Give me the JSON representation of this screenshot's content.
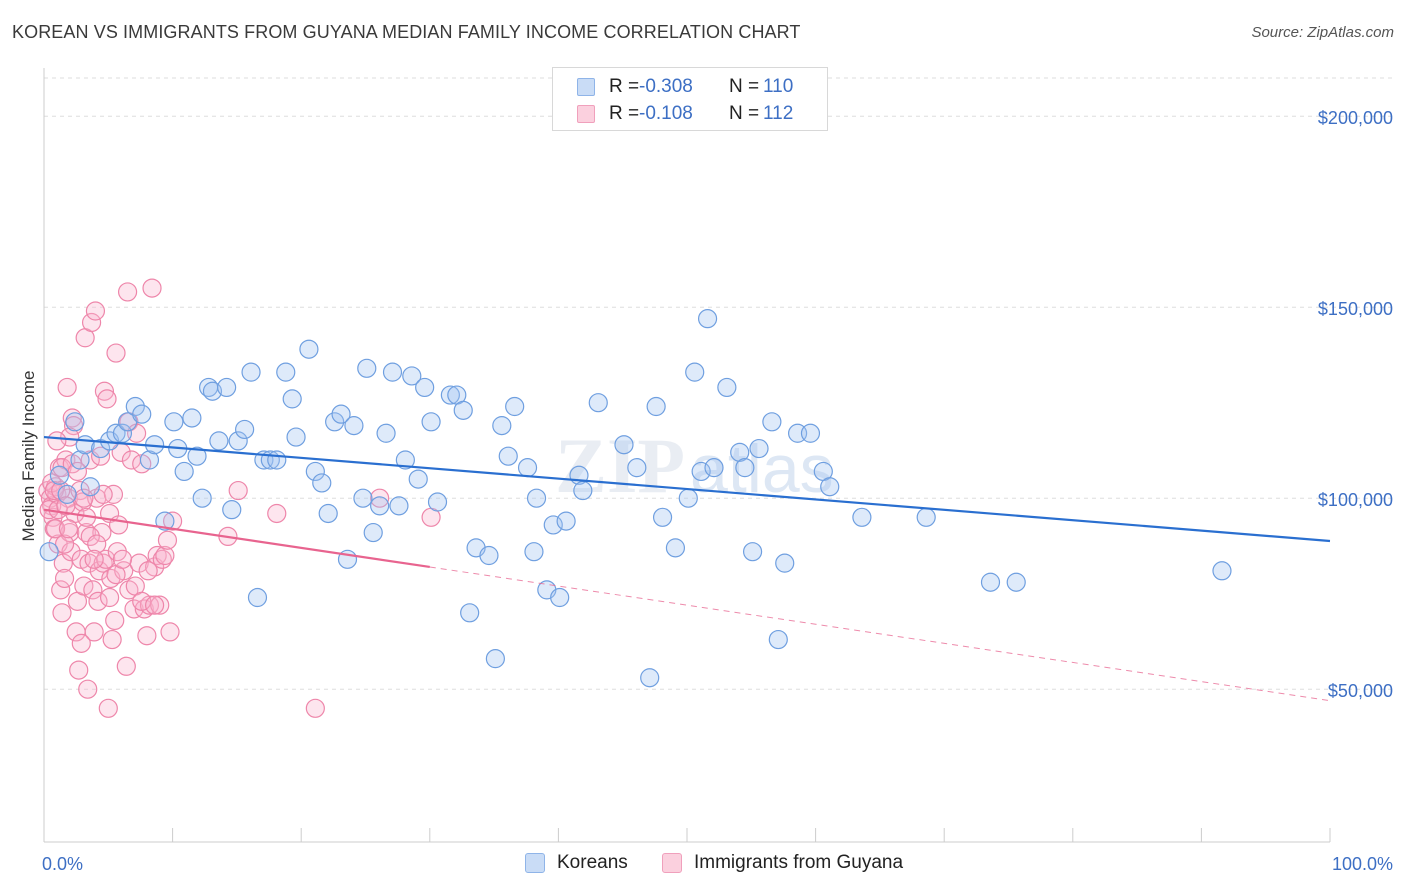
{
  "title": "KOREAN VS IMMIGRANTS FROM GUYANA MEDIAN FAMILY INCOME CORRELATION CHART",
  "source": "Source: ZipAtlas.com",
  "watermark": {
    "zip": "ZIP",
    "atlas": "atlas"
  },
  "legend_stats": [
    {
      "r_label": "R =",
      "r_value": "-0.308",
      "n_label": "N =",
      "n_value": "110",
      "color": "#8fb4e8",
      "fill": "#c9dcf6"
    },
    {
      "r_label": "R =",
      "r_value": "-0.108",
      "n_label": "N =",
      "n_value": "112",
      "color": "#f0a0bc",
      "fill": "#fbd0de"
    }
  ],
  "bottom_legend": [
    {
      "label": "Koreans",
      "color": "#8fb4e8",
      "fill": "#c9dcf6"
    },
    {
      "label": "Immigrants from Guyana",
      "color": "#f0a0bc",
      "fill": "#fbd0de"
    }
  ],
  "chart_data": {
    "type": "scatter",
    "xlabel": "",
    "ylabel": "Median Family Income",
    "xlim": [
      0,
      100
    ],
    "ylim": [
      10000,
      210000
    ],
    "y_ticks": [
      {
        "value": 50000,
        "label": "$50,000"
      },
      {
        "value": 100000,
        "label": "$100,000"
      },
      {
        "value": 150000,
        "label": "$150,000"
      },
      {
        "value": 200000,
        "label": "$200,000"
      }
    ],
    "x_ticks": [
      {
        "value": 0,
        "label": "0.0%"
      },
      {
        "value": 100,
        "label": "100.0%"
      }
    ],
    "grid": true,
    "colors": {
      "koreans_stroke": "#6f9fe0",
      "koreans_fill": "rgba(160,195,240,0.35)",
      "guyana_stroke": "#ee86aa",
      "guyana_fill": "rgba(248,180,205,0.35)",
      "koreans_line": "#2a6fd0",
      "guyana_line": "#e8648f"
    },
    "series": [
      {
        "name": "Koreans",
        "trend": {
          "x": [
            0,
            100
          ],
          "y": [
            116000,
            88800
          ]
        },
        "points": [
          [
            0.4,
            86000
          ],
          [
            1.2,
            106000
          ],
          [
            1.8,
            101000
          ],
          [
            2.4,
            120000
          ],
          [
            2.8,
            110000
          ],
          [
            3.2,
            114000
          ],
          [
            3.6,
            103000
          ],
          [
            4.4,
            113000
          ],
          [
            5.1,
            115000
          ],
          [
            5.6,
            117000
          ],
          [
            6.1,
            117000
          ],
          [
            6.5,
            120000
          ],
          [
            7.1,
            124000
          ],
          [
            7.6,
            122000
          ],
          [
            8.2,
            110000
          ],
          [
            8.6,
            114000
          ],
          [
            9.4,
            94000
          ],
          [
            10.1,
            120000
          ],
          [
            10.4,
            113000
          ],
          [
            10.9,
            107000
          ],
          [
            11.5,
            121000
          ],
          [
            11.9,
            111000
          ],
          [
            12.3,
            100000
          ],
          [
            12.8,
            129000
          ],
          [
            13.1,
            128000
          ],
          [
            13.6,
            115000
          ],
          [
            14.2,
            129000
          ],
          [
            14.6,
            97000
          ],
          [
            15.1,
            115000
          ],
          [
            15.6,
            118000
          ],
          [
            16.1,
            133000
          ],
          [
            16.6,
            74000
          ],
          [
            17.1,
            110000
          ],
          [
            17.6,
            110000
          ],
          [
            18.1,
            110000
          ],
          [
            18.8,
            133000
          ],
          [
            19.3,
            126000
          ],
          [
            19.6,
            116000
          ],
          [
            20.6,
            139000
          ],
          [
            21.1,
            107000
          ],
          [
            21.6,
            104000
          ],
          [
            22.1,
            96000
          ],
          [
            22.6,
            120000
          ],
          [
            23.1,
            122000
          ],
          [
            23.6,
            84000
          ],
          [
            24.1,
            119000
          ],
          [
            24.8,
            100000
          ],
          [
            25.1,
            134000
          ],
          [
            25.6,
            91000
          ],
          [
            26.1,
            98000
          ],
          [
            26.6,
            117000
          ],
          [
            27.1,
            133000
          ],
          [
            27.6,
            98000
          ],
          [
            28.1,
            110000
          ],
          [
            28.6,
            132000
          ],
          [
            29.1,
            105000
          ],
          [
            29.6,
            129000
          ],
          [
            30.1,
            120000
          ],
          [
            30.6,
            99000
          ],
          [
            31.6,
            127000
          ],
          [
            32.1,
            127000
          ],
          [
            32.6,
            123000
          ],
          [
            33.1,
            70000
          ],
          [
            33.6,
            87000
          ],
          [
            34.6,
            85000
          ],
          [
            35.1,
            58000
          ],
          [
            35.6,
            119000
          ],
          [
            36.1,
            111000
          ],
          [
            36.6,
            124000
          ],
          [
            37.6,
            108000
          ],
          [
            38.1,
            86000
          ],
          [
            38.3,
            100000
          ],
          [
            39.1,
            76000
          ],
          [
            39.6,
            93000
          ],
          [
            40.1,
            74000
          ],
          [
            40.6,
            94000
          ],
          [
            41.6,
            106000
          ],
          [
            41.9,
            102000
          ],
          [
            43.1,
            125000
          ],
          [
            45.1,
            114000
          ],
          [
            46.1,
            108000
          ],
          [
            47.1,
            53000
          ],
          [
            47.6,
            124000
          ],
          [
            48.1,
            95000
          ],
          [
            49.1,
            87000
          ],
          [
            50.1,
            100000
          ],
          [
            50.6,
            133000
          ],
          [
            51.1,
            107000
          ],
          [
            51.6,
            147000
          ],
          [
            52.1,
            108000
          ],
          [
            53.1,
            129000
          ],
          [
            54.1,
            112000
          ],
          [
            54.5,
            108000
          ],
          [
            55.1,
            86000
          ],
          [
            55.6,
            113000
          ],
          [
            56.6,
            120000
          ],
          [
            57.1,
            63000
          ],
          [
            57.6,
            83000
          ],
          [
            58.6,
            117000
          ],
          [
            59.6,
            117000
          ],
          [
            60.6,
            107000
          ],
          [
            61.1,
            103000
          ],
          [
            63.6,
            95000
          ],
          [
            68.6,
            95000
          ],
          [
            73.6,
            78000
          ],
          [
            75.6,
            78000
          ],
          [
            91.6,
            81000
          ]
        ]
      },
      {
        "name": "Immigrants from Guyana",
        "trend": {
          "x": [
            0,
            30
          ],
          "y": [
            97000,
            82000
          ],
          "dashed_to": {
            "x": 100,
            "y": 47000
          }
        },
        "points": [
          [
            0.3,
            102000
          ],
          [
            0.5,
            100000
          ],
          [
            0.6,
            98000
          ],
          [
            0.7,
            95000
          ],
          [
            0.8,
            92000
          ],
          [
            0.9,
            103000
          ],
          [
            1.0,
            101000
          ],
          [
            1.1,
            88000
          ],
          [
            1.2,
            108000
          ],
          [
            1.3,
            76000
          ],
          [
            1.4,
            70000
          ],
          [
            1.5,
            83000
          ],
          [
            1.6,
            79000
          ],
          [
            1.7,
            110000
          ],
          [
            1.8,
            129000
          ],
          [
            1.9,
            100000
          ],
          [
            2.0,
            91000
          ],
          [
            2.1,
            86000
          ],
          [
            2.2,
            121000
          ],
          [
            2.3,
            119000
          ],
          [
            2.4,
            96000
          ],
          [
            2.5,
            65000
          ],
          [
            2.6,
            73000
          ],
          [
            2.7,
            55000
          ],
          [
            2.8,
            102000
          ],
          [
            2.9,
            84000
          ],
          [
            3.0,
            99000
          ],
          [
            3.1,
            77000
          ],
          [
            3.2,
            142000
          ],
          [
            3.3,
            91000
          ],
          [
            3.4,
            50000
          ],
          [
            3.5,
            83000
          ],
          [
            3.6,
            110000
          ],
          [
            3.7,
            146000
          ],
          [
            3.8,
            76000
          ],
          [
            3.9,
            65000
          ],
          [
            4.0,
            149000
          ],
          [
            4.1,
            100000
          ],
          [
            4.2,
            73000
          ],
          [
            4.3,
            81000
          ],
          [
            4.4,
            111000
          ],
          [
            4.5,
            91000
          ],
          [
            4.6,
            83000
          ],
          [
            4.7,
            128000
          ],
          [
            4.8,
            84000
          ],
          [
            4.9,
            126000
          ],
          [
            5.0,
            45000
          ],
          [
            5.1,
            96000
          ],
          [
            5.2,
            79000
          ],
          [
            5.3,
            63000
          ],
          [
            5.4,
            101000
          ],
          [
            5.5,
            68000
          ],
          [
            5.6,
            138000
          ],
          [
            5.7,
            86000
          ],
          [
            5.8,
            93000
          ],
          [
            6.0,
            112000
          ],
          [
            6.2,
            81000
          ],
          [
            6.4,
            56000
          ],
          [
            6.6,
            120000
          ],
          [
            6.8,
            110000
          ],
          [
            7.0,
            71000
          ],
          [
            7.2,
            117000
          ],
          [
            7.4,
            83000
          ],
          [
            7.6,
            109000
          ],
          [
            7.8,
            71000
          ],
          [
            8.0,
            64000
          ],
          [
            8.2,
            72000
          ],
          [
            8.4,
            155000
          ],
          [
            8.6,
            82000
          ],
          [
            8.8,
            85000
          ],
          [
            9.0,
            72000
          ],
          [
            9.2,
            84000
          ],
          [
            9.4,
            85000
          ],
          [
            9.6,
            89000
          ],
          [
            9.8,
            65000
          ],
          [
            10.0,
            94000
          ],
          [
            6.5,
            154000
          ],
          [
            14.3,
            90000
          ],
          [
            15.1,
            102000
          ],
          [
            18.1,
            96000
          ],
          [
            21.1,
            45000
          ],
          [
            26.1,
            100000
          ],
          [
            30.1,
            95000
          ],
          [
            0.4,
            97000
          ],
          [
            0.6,
            104000
          ],
          [
            0.9,
            92000
          ],
          [
            1.1,
            97000
          ],
          [
            1.4,
            108000
          ],
          [
            1.6,
            88000
          ],
          [
            1.9,
            92000
          ],
          [
            2.2,
            109000
          ],
          [
            2.6,
            107000
          ],
          [
            3.1,
            100000
          ],
          [
            3.6,
            90000
          ],
          [
            4.1,
            88000
          ],
          [
            4.6,
            101000
          ],
          [
            5.1,
            74000
          ],
          [
            5.6,
            80000
          ],
          [
            6.1,
            84000
          ],
          [
            6.6,
            76000
          ],
          [
            7.1,
            77000
          ],
          [
            7.6,
            73000
          ],
          [
            8.1,
            81000
          ],
          [
            8.6,
            72000
          ],
          [
            2.0,
            116000
          ],
          [
            1.0,
            115000
          ],
          [
            0.8,
            102000
          ],
          [
            1.3,
            102000
          ],
          [
            1.7,
            98000
          ],
          [
            2.9,
            62000
          ],
          [
            3.3,
            95000
          ],
          [
            3.9,
            84000
          ]
        ]
      }
    ]
  }
}
